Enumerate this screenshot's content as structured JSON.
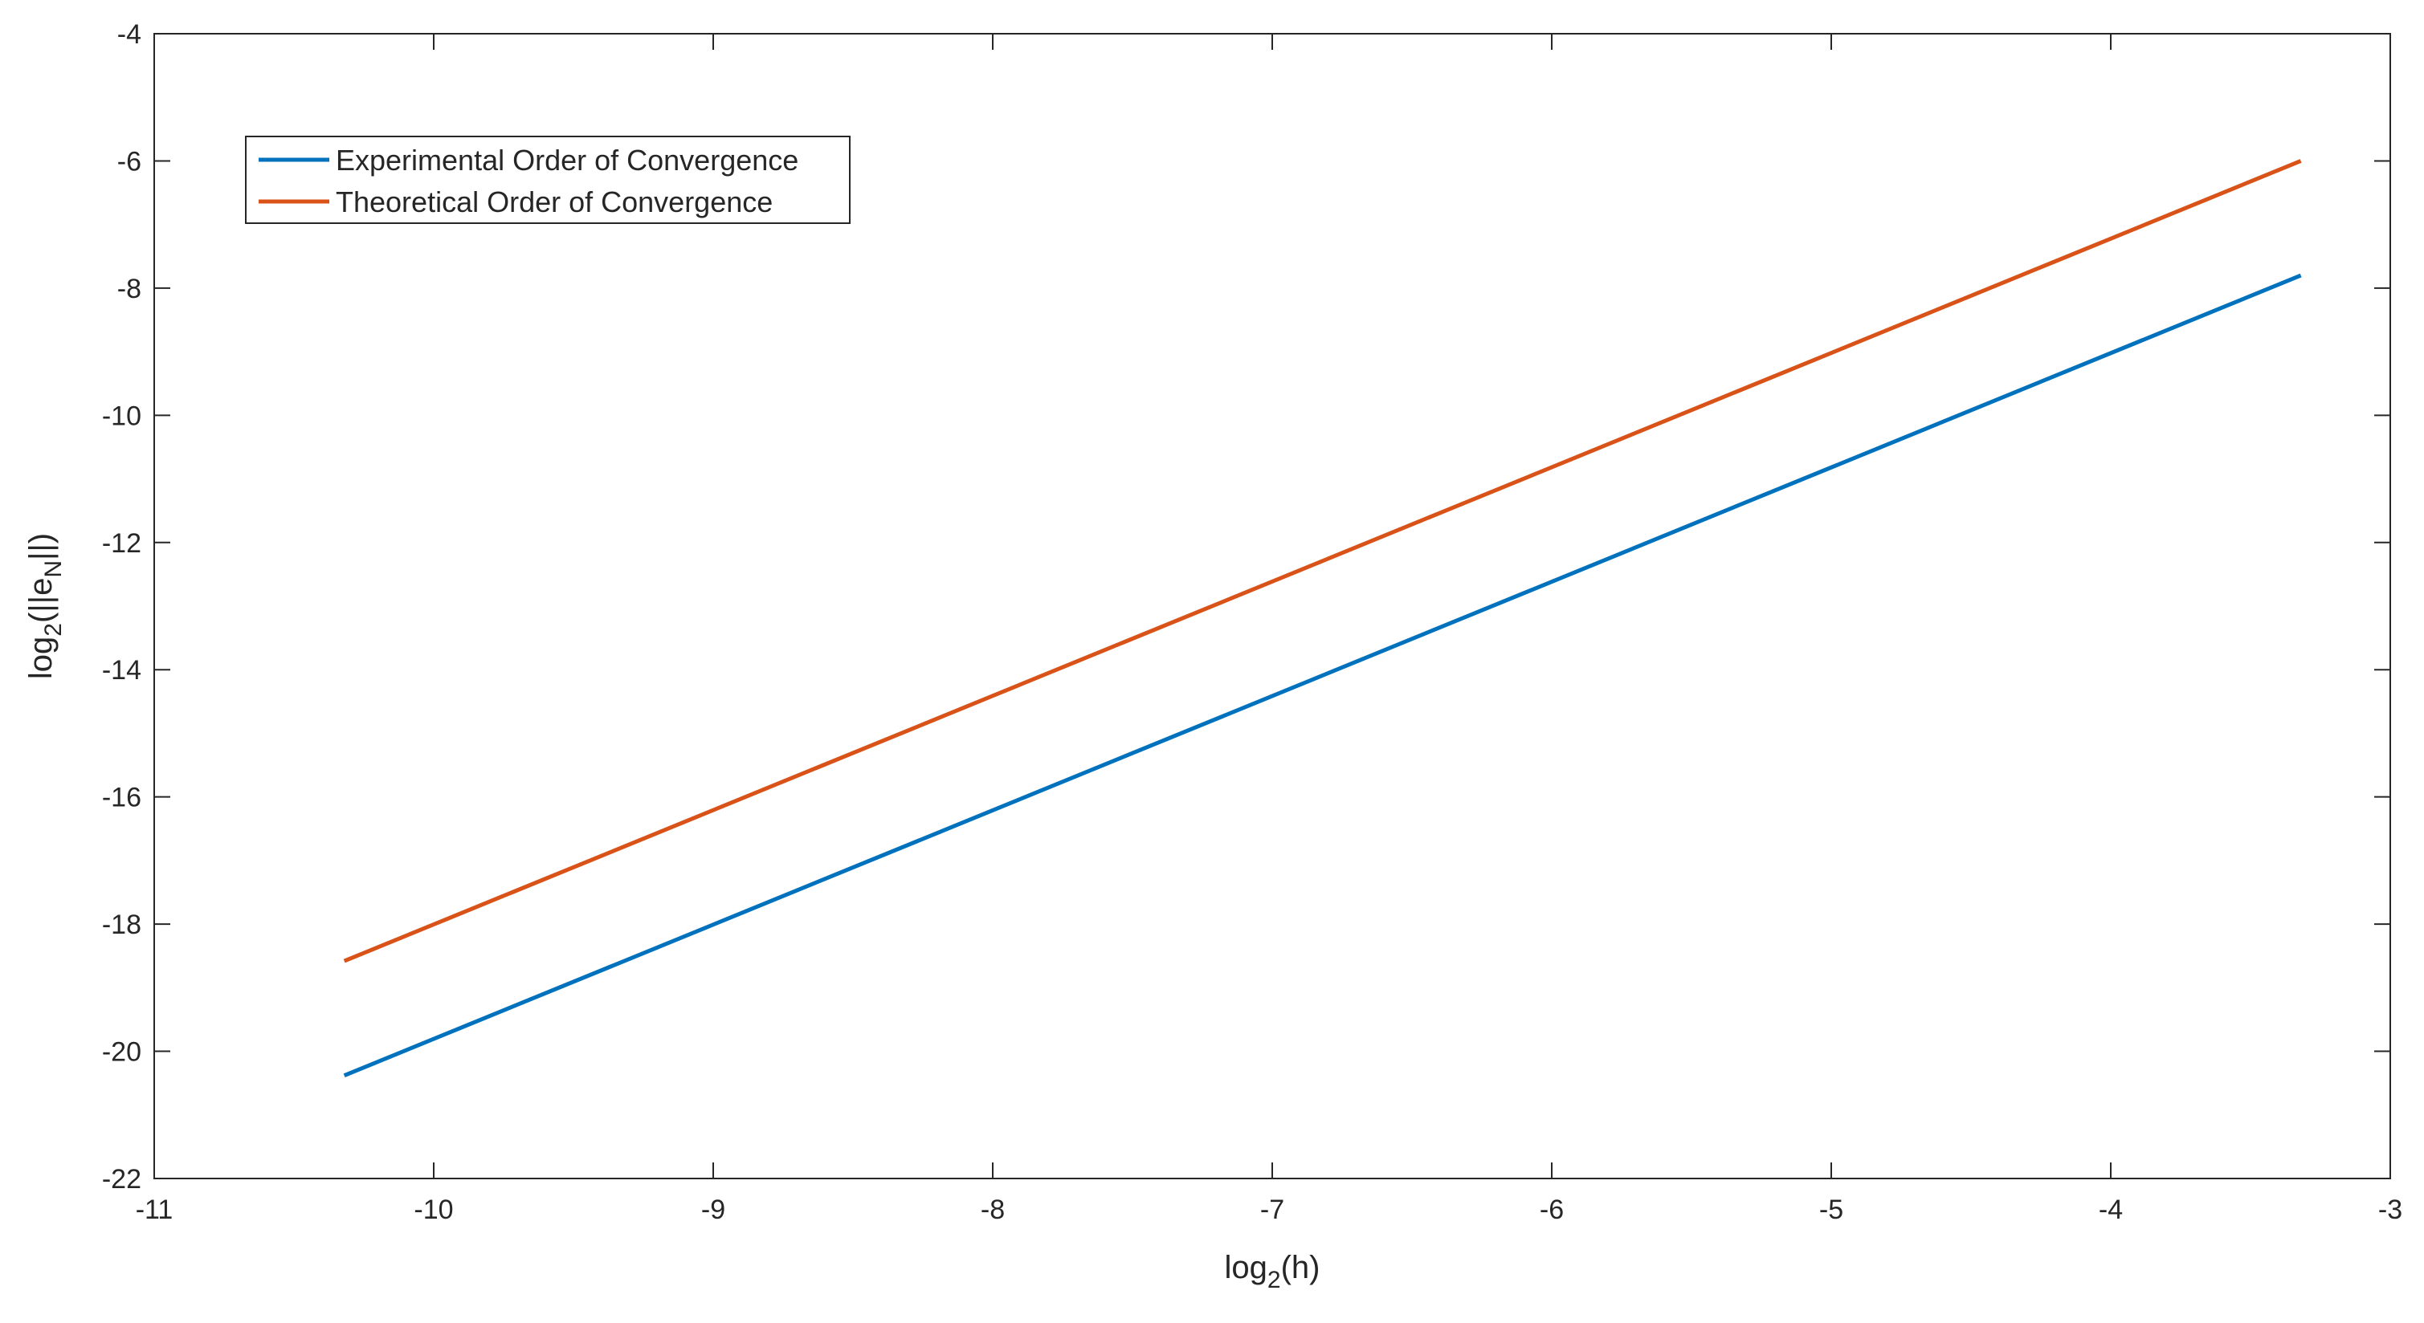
{
  "chart_data": {
    "type": "line",
    "title": "",
    "xlabel": {
      "base": "log",
      "sub": "2",
      "rest": "(h)"
    },
    "ylabel": {
      "base": "log",
      "sub1": "2",
      "mid": "(||e",
      "sub2": "N",
      "rest": "||)"
    },
    "xlim": [
      -11,
      -3
    ],
    "ylim": [
      -22,
      -4
    ],
    "xticks": [
      -11,
      -10,
      -9,
      -8,
      -7,
      -6,
      -5,
      -4,
      -3
    ],
    "yticks": [
      -22,
      -20,
      -18,
      -16,
      -14,
      -12,
      -10,
      -8,
      -6,
      -4
    ],
    "xtick_labels": [
      "-11",
      "-10",
      "-9",
      "-8",
      "-7",
      "-6",
      "-5",
      "-4",
      "-3"
    ],
    "ytick_labels": [
      "-22",
      "-20",
      "-18",
      "-16",
      "-14",
      "-12",
      "-10",
      "-8",
      "-6",
      "-4"
    ],
    "grid": false,
    "legend_position": "top-left",
    "series": [
      {
        "name": "Experimental Order of Convergence",
        "color": "#0072BD",
        "x": [
          -10.32,
          -3.32
        ],
        "y": [
          -20.38,
          -7.8
        ]
      },
      {
        "name": "Theoretical Order of Convergence",
        "color": "#D95319",
        "x": [
          -10.32,
          -3.32
        ],
        "y": [
          -18.58,
          -6.0
        ]
      }
    ]
  }
}
